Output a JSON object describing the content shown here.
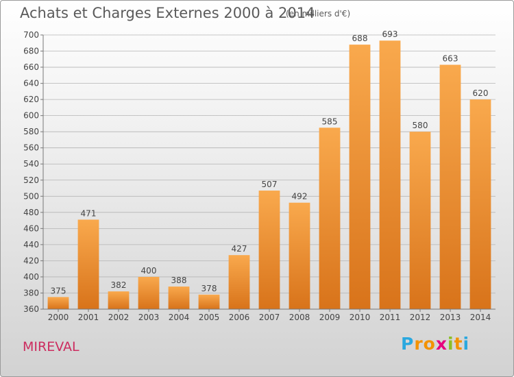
{
  "header": {
    "title": "Achats et Charges Externes 2000 à 2014",
    "subtitle": "(en milliers d'€)"
  },
  "footer": {
    "commune": "MIREVAL",
    "logo_letters": [
      "P",
      "r",
      "o",
      "x",
      "i",
      "t",
      "i"
    ],
    "logo_colors": [
      "#2aa8df",
      "#f39200",
      "#f39200",
      "#e6007e",
      "#8cbf26",
      "#f39200",
      "#2aa8df"
    ]
  },
  "chart_data": {
    "type": "bar",
    "categories": [
      "2000",
      "2001",
      "2002",
      "2003",
      "2004",
      "2005",
      "2006",
      "2007",
      "2008",
      "2009",
      "2010",
      "2011",
      "2012",
      "2013",
      "2014"
    ],
    "values": [
      375,
      471,
      382,
      400,
      388,
      378,
      427,
      507,
      492,
      585,
      688,
      693,
      580,
      663,
      620
    ],
    "title": "Achats et Charges Externes 2000 à 2014",
    "subtitle": "(en milliers d'€)",
    "ylim": [
      360,
      700
    ],
    "yticks": [
      360,
      380,
      400,
      420,
      440,
      460,
      480,
      500,
      520,
      540,
      560,
      580,
      600,
      620,
      640,
      660,
      680,
      700
    ],
    "grid": true,
    "bar_color_light": "#f9a94d",
    "bar_color_dark": "#d8731a"
  }
}
